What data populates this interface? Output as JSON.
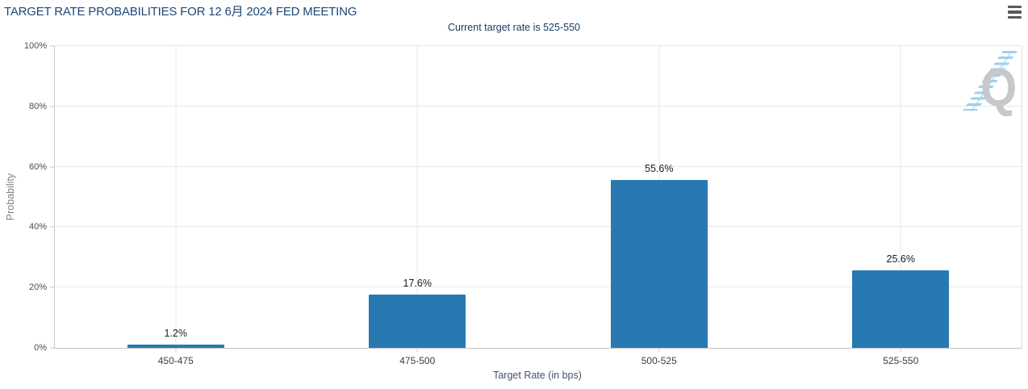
{
  "header": {
    "menu_icon": "hamburger-menu-icon"
  },
  "chart_data": {
    "type": "bar",
    "title": "TARGET RATE PROBABILITIES FOR 12 6月 2024 FED MEETING",
    "subtitle": "Current target rate is 525-550",
    "xlabel": "Target Rate (in bps)",
    "ylabel": "Probability",
    "categories": [
      "450-475",
      "475-500",
      "500-525",
      "525-550"
    ],
    "values": [
      1.2,
      17.6,
      55.6,
      25.6
    ],
    "data_labels": [
      "1.2%",
      "17.6%",
      "55.6%",
      "25.6%"
    ],
    "ylim": [
      0,
      100
    ],
    "yticks": [
      0,
      20,
      40,
      60,
      80,
      100
    ],
    "ytick_labels": [
      "0%",
      "20%",
      "40%",
      "60%",
      "80%",
      "100%"
    ],
    "bar_color": "#2878b2",
    "grid": true,
    "legend": false
  },
  "watermark": {
    "letter": "Q"
  },
  "colors": {
    "title": "#1c4775",
    "subtitle": "#173d63",
    "bar": "#2878b2",
    "axis_title": "#44546b",
    "gridline": "#e7e7e7",
    "watermark_gray": "#c6c8ca",
    "watermark_blue": "#8ecdea"
  }
}
